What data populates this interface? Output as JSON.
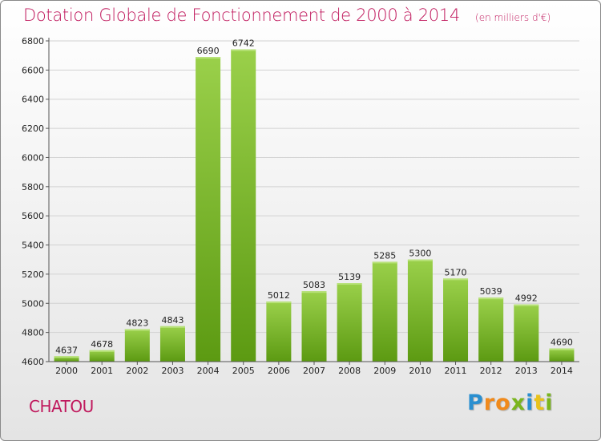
{
  "header": {
    "title": "Dotation Globale de Fonctionnement de 2000 à 2014",
    "unit": "(en milliers d'€)"
  },
  "footer": {
    "place": "CHATOU",
    "logo_letters": [
      "P",
      "r",
      "o",
      "x",
      "i",
      "t",
      "i"
    ],
    "logo_colors": [
      "#2a8fd0",
      "#f08a1c",
      "#f08a1c",
      "#7ab51d",
      "#2a8fd0",
      "#e9c21a",
      "#7ab51d"
    ]
  },
  "colors": {
    "title": "#c0195d",
    "bar_top": "#9ad04a",
    "bar_bottom": "#5c9a12"
  },
  "chart_data": {
    "type": "bar",
    "title": "Dotation Globale de Fonctionnement de 2000 à 2014",
    "subtitle": "(en milliers d'€)",
    "xlabel": "",
    "ylabel": "",
    "ylim": [
      4600,
      6800
    ],
    "yticks": [
      4600,
      4800,
      5000,
      5200,
      5400,
      5600,
      5800,
      6000,
      6200,
      6400,
      6600,
      6800
    ],
    "grid": true,
    "categories": [
      "2000",
      "2001",
      "2002",
      "2003",
      "2004",
      "2005",
      "2006",
      "2007",
      "2008",
      "2009",
      "2010",
      "2011",
      "2012",
      "2013",
      "2014"
    ],
    "values": [
      4637,
      4678,
      4823,
      4843,
      6690,
      6742,
      5012,
      5083,
      5139,
      5285,
      5300,
      5170,
      5039,
      4992,
      4690
    ]
  }
}
